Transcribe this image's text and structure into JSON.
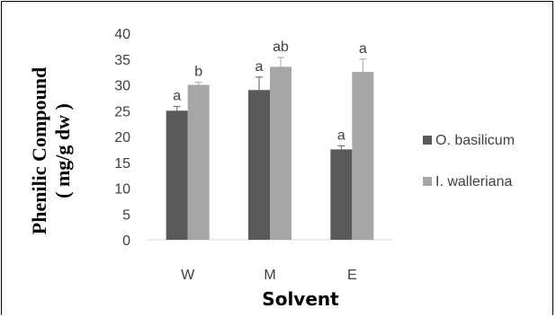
{
  "chart_data": {
    "type": "bar",
    "title": "",
    "xlabel": "Solvent",
    "ylabel_lines": [
      "Phenilic Compound",
      "( mg/g dw )"
    ],
    "categories": [
      "W",
      "M",
      "E"
    ],
    "ylim": [
      0,
      40
    ],
    "yticks": [
      0,
      5,
      10,
      15,
      20,
      25,
      30,
      35,
      40
    ],
    "grid": false,
    "legend_position": "right",
    "series": [
      {
        "name": "O. basilicum",
        "color": "#595959",
        "values": [
          25,
          29,
          17.5
        ],
        "errors": [
          0.8,
          2.5,
          0.7
        ],
        "labels": [
          "a",
          "a",
          "a"
        ]
      },
      {
        "name": "I. walleriana",
        "color": "#a6a6a6",
        "values": [
          30,
          33.5,
          32.5
        ],
        "errors": [
          0.5,
          1.8,
          2.5
        ],
        "labels": [
          "b",
          "ab",
          "a"
        ]
      }
    ]
  }
}
